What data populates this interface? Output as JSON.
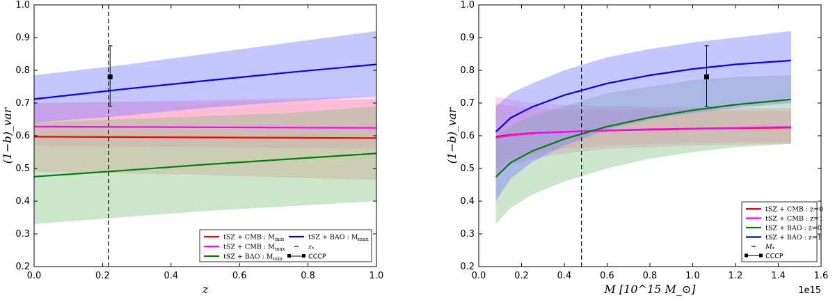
{
  "chart_data": [
    {
      "type": "line",
      "xlabel": "z",
      "ylabel": "(1−b)_var",
      "xlim": [
        0.0,
        1.0
      ],
      "ylim": [
        0.2,
        1.0
      ],
      "xticks": [
        "0.0",
        "0.2",
        "0.4",
        "0.6",
        "0.8",
        "1.0"
      ],
      "yticks": [
        "0.2",
        "0.3",
        "0.4",
        "0.5",
        "0.6",
        "0.7",
        "0.8",
        "0.9",
        "1.0"
      ],
      "series": [
        {
          "name": "tSZ + CMB : M_min",
          "legend": "tSZ + CMB : M",
          "legend_sub": "min",
          "color": "#ff0000",
          "band_color": "#ffb0b0",
          "band_opacity": 0.5,
          "x": [
            0,
            0.25,
            0.5,
            0.75,
            1.0
          ],
          "y": [
            0.597,
            0.596,
            0.595,
            0.594,
            0.593
          ],
          "lower": [
            0.49,
            0.485,
            0.48,
            0.472,
            0.465
          ],
          "upper": [
            0.7,
            0.702,
            0.705,
            0.708,
            0.712
          ]
        },
        {
          "name": "tSZ + CMB : M_max",
          "legend": "tSZ + CMB : M",
          "legend_sub": "max",
          "color": "#ff00ff",
          "band_color": "#ff80d0",
          "band_opacity": 0.3,
          "x": [
            0,
            0.25,
            0.5,
            0.75,
            1.0
          ],
          "y": [
            0.628,
            0.627,
            0.626,
            0.625,
            0.624
          ],
          "lower": [
            0.57,
            0.567,
            0.565,
            0.562,
            0.56
          ],
          "upper": [
            0.7,
            0.705,
            0.71,
            0.715,
            0.72
          ]
        },
        {
          "name": "tSZ + BAO : M_min",
          "legend": "tSZ + BAO : M",
          "legend_sub": "min",
          "color": "#007f00",
          "band_color": "#80c080",
          "band_opacity": 0.4,
          "x": [
            0,
            0.25,
            0.5,
            0.75,
            1.0
          ],
          "y": [
            0.475,
            0.493,
            0.512,
            0.529,
            0.546
          ],
          "lower": [
            0.33,
            0.35,
            0.37,
            0.385,
            0.4
          ],
          "upper": [
            0.64,
            0.65,
            0.66,
            0.67,
            0.69
          ]
        },
        {
          "name": "tSZ + BAO : M_max",
          "legend": "tSZ + BAO : M",
          "legend_sub": "max",
          "color": "#0000ff",
          "band_color": "#8080ff",
          "band_opacity": 0.45,
          "x": [
            0,
            0.25,
            0.5,
            0.75,
            1.0
          ],
          "y": [
            0.712,
            0.741,
            0.768,
            0.794,
            0.818
          ],
          "lower": [
            0.64,
            0.66,
            0.685,
            0.705,
            0.72
          ],
          "upper": [
            0.785,
            0.815,
            0.85,
            0.885,
            0.92
          ]
        }
      ],
      "vline": {
        "label": "z",
        "label_sub": "*",
        "x": 0.217
      },
      "cccp": {
        "label": "CCCP",
        "x": 0.222,
        "y": 0.78,
        "yerr_low": 0.69,
        "yerr_high": 0.875
      },
      "legend_position": "lower-right"
    },
    {
      "type": "line",
      "xlabel": "M [10^15 M_⊙]",
      "ylabel": "(1−b)_var",
      "offset_text": "1e15",
      "xlim": [
        0.0,
        1.6
      ],
      "ylim": [
        0.2,
        1.0
      ],
      "xticks": [
        "0.0",
        "0.2",
        "0.4",
        "0.6",
        "0.8",
        "1.0",
        "1.2",
        "1.4",
        "1.6"
      ],
      "yticks": [
        "0.2",
        "0.3",
        "0.4",
        "0.5",
        "0.6",
        "0.7",
        "0.8",
        "0.9",
        "1.0"
      ],
      "series": [
        {
          "name": "tSZ + CMB : z=0",
          "legend": "tSZ + CMB : z=0",
          "color": "#ff0000",
          "band_color": "#ffb0b0",
          "band_opacity": 0.5,
          "x": [
            0.08,
            0.15,
            0.25,
            0.4,
            0.6,
            0.8,
            1.0,
            1.2,
            1.46
          ],
          "y": [
            0.597,
            0.603,
            0.608,
            0.612,
            0.616,
            0.619,
            0.621,
            0.623,
            0.625
          ],
          "lower": [
            0.5,
            0.53,
            0.545,
            0.56,
            0.57,
            0.575,
            0.578,
            0.58,
            0.58
          ],
          "upper": [
            0.7,
            0.69,
            0.685,
            0.68,
            0.68,
            0.678,
            0.677,
            0.676,
            0.675
          ]
        },
        {
          "name": "tSZ + CMB : z=1",
          "legend": "tSZ + CMB : z=1",
          "color": "#ff00ff",
          "band_color": "#ff80d0",
          "band_opacity": 0.35,
          "x": [
            0.08,
            0.15,
            0.25,
            0.4,
            0.6,
            0.8,
            1.0,
            1.2,
            1.46
          ],
          "y": [
            0.594,
            0.601,
            0.607,
            0.612,
            0.616,
            0.62,
            0.622,
            0.624,
            0.627
          ],
          "lower": [
            0.48,
            0.51,
            0.53,
            0.545,
            0.56,
            0.565,
            0.57,
            0.573,
            0.575
          ],
          "upper": [
            0.72,
            0.71,
            0.7,
            0.695,
            0.69,
            0.688,
            0.686,
            0.685,
            0.684
          ]
        },
        {
          "name": "tSZ + BAO : z=0",
          "legend": "tSZ + BAO : z=0",
          "color": "#007f00",
          "band_color": "#80c080",
          "band_opacity": 0.4,
          "x": [
            0.08,
            0.15,
            0.25,
            0.4,
            0.6,
            0.8,
            1.0,
            1.2,
            1.46
          ],
          "y": [
            0.474,
            0.518,
            0.553,
            0.59,
            0.628,
            0.656,
            0.678,
            0.695,
            0.711
          ],
          "lower": [
            0.33,
            0.38,
            0.42,
            0.46,
            0.5,
            0.53,
            0.55,
            0.565,
            0.575
          ],
          "upper": [
            0.6,
            0.63,
            0.66,
            0.69,
            0.73,
            0.75,
            0.77,
            0.78,
            0.785
          ]
        },
        {
          "name": "tSZ + BAO : z=1",
          "legend": "tSZ + BAO : z=1",
          "color": "#0000ff",
          "band_color": "#8080ff",
          "band_opacity": 0.45,
          "x": [
            0.08,
            0.15,
            0.25,
            0.4,
            0.6,
            0.8,
            1.0,
            1.2,
            1.46
          ],
          "y": [
            0.612,
            0.655,
            0.688,
            0.724,
            0.76,
            0.785,
            0.804,
            0.818,
            0.83
          ],
          "lower": [
            0.4,
            0.47,
            0.52,
            0.57,
            0.62,
            0.65,
            0.67,
            0.685,
            0.7
          ],
          "upper": [
            0.69,
            0.73,
            0.76,
            0.8,
            0.84,
            0.865,
            0.885,
            0.9,
            0.92
          ]
        }
      ],
      "vline": {
        "label": "M",
        "label_sub": "*",
        "x": 0.48
      },
      "cccp": {
        "label": "CCCP",
        "x": 1.065,
        "y": 0.78,
        "yerr_low": 0.69,
        "yerr_high": 0.875
      },
      "legend_position": "lower-right"
    }
  ]
}
